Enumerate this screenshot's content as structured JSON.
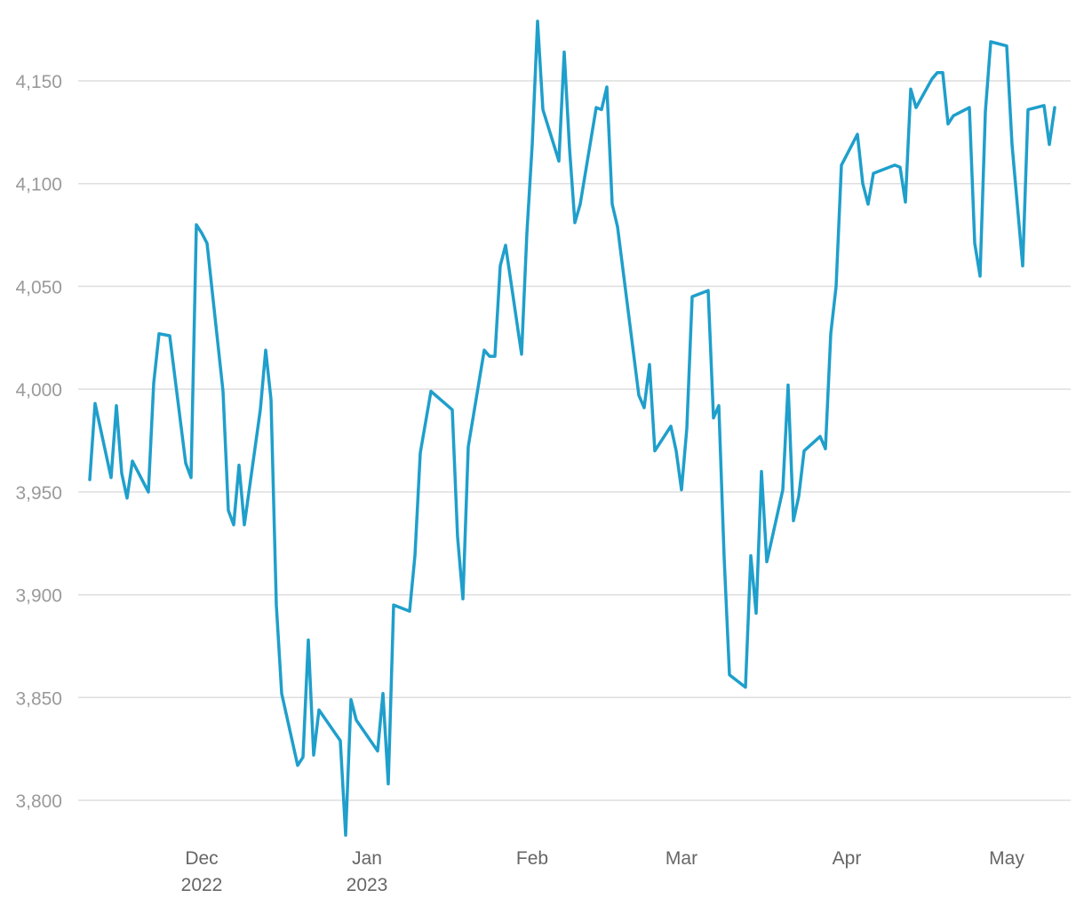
{
  "chart_data": {
    "type": "line",
    "title": "",
    "xlabel": "",
    "ylabel": "",
    "ylim": [
      3780,
      4180
    ],
    "xlim": [
      "2022-11-08",
      "2023-05-12"
    ],
    "grid": "horizontal",
    "legend": "none",
    "y_ticks": [
      {
        "value": 3800,
        "label": "3,800"
      },
      {
        "value": 3850,
        "label": "3,850"
      },
      {
        "value": 3900,
        "label": "3,900"
      },
      {
        "value": 3950,
        "label": "3,950"
      },
      {
        "value": 4000,
        "label": "4,000"
      },
      {
        "value": 4050,
        "label": "4,050"
      },
      {
        "value": 4100,
        "label": "4,100"
      },
      {
        "value": 4150,
        "label": "4,150"
      }
    ],
    "x_ticks": [
      {
        "date": "2022-12-01",
        "label": "Dec",
        "sublabel": "2022"
      },
      {
        "date": "2023-01-01",
        "label": "Jan",
        "sublabel": "2023"
      },
      {
        "date": "2023-02-01",
        "label": "Feb",
        "sublabel": ""
      },
      {
        "date": "2023-03-01",
        "label": "Mar",
        "sublabel": ""
      },
      {
        "date": "2023-04-01",
        "label": "Apr",
        "sublabel": ""
      },
      {
        "date": "2023-05-01",
        "label": "May",
        "sublabel": ""
      }
    ],
    "series": [
      {
        "color": "#1f9fcb",
        "points": [
          [
            "2022-11-10",
            3956
          ],
          [
            "2022-11-11",
            3993
          ],
          [
            "2022-11-14",
            3957
          ],
          [
            "2022-11-15",
            3992
          ],
          [
            "2022-11-16",
            3959
          ],
          [
            "2022-11-17",
            3947
          ],
          [
            "2022-11-18",
            3965
          ],
          [
            "2022-11-21",
            3950
          ],
          [
            "2022-11-22",
            4003
          ],
          [
            "2022-11-23",
            4027
          ],
          [
            "2022-11-25",
            4026
          ],
          [
            "2022-11-28",
            3964
          ],
          [
            "2022-11-29",
            3957
          ],
          [
            "2022-11-30",
            4080
          ],
          [
            "2022-12-01",
            4076
          ],
          [
            "2022-12-02",
            4071
          ],
          [
            "2022-12-05",
            3999
          ],
          [
            "2022-12-06",
            3941
          ],
          [
            "2022-12-07",
            3934
          ],
          [
            "2022-12-08",
            3963
          ],
          [
            "2022-12-09",
            3934
          ],
          [
            "2022-12-12",
            3990
          ],
          [
            "2022-12-13",
            4019
          ],
          [
            "2022-12-14",
            3995
          ],
          [
            "2022-12-15",
            3895
          ],
          [
            "2022-12-16",
            3852
          ],
          [
            "2022-12-19",
            3817
          ],
          [
            "2022-12-20",
            3821
          ],
          [
            "2022-12-21",
            3878
          ],
          [
            "2022-12-22",
            3822
          ],
          [
            "2022-12-23",
            3844
          ],
          [
            "2022-12-27",
            3829
          ],
          [
            "2022-12-28",
            3783
          ],
          [
            "2022-12-29",
            3849
          ],
          [
            "2022-12-30",
            3839
          ],
          [
            "2023-01-03",
            3824
          ],
          [
            "2023-01-04",
            3852
          ],
          [
            "2023-01-05",
            3808
          ],
          [
            "2023-01-06",
            3895
          ],
          [
            "2023-01-09",
            3892
          ],
          [
            "2023-01-10",
            3919
          ],
          [
            "2023-01-11",
            3969
          ],
          [
            "2023-01-13",
            3999
          ],
          [
            "2023-01-17",
            3990
          ],
          [
            "2023-01-18",
            3928
          ],
          [
            "2023-01-19",
            3898
          ],
          [
            "2023-01-20",
            3972
          ],
          [
            "2023-01-23",
            4019
          ],
          [
            "2023-01-24",
            4016
          ],
          [
            "2023-01-25",
            4016
          ],
          [
            "2023-01-26",
            4060
          ],
          [
            "2023-01-27",
            4070
          ],
          [
            "2023-01-30",
            4017
          ],
          [
            "2023-01-31",
            4076
          ],
          [
            "2023-02-01",
            4119
          ],
          [
            "2023-02-02",
            4179
          ],
          [
            "2023-02-03",
            4136
          ],
          [
            "2023-02-06",
            4111
          ],
          [
            "2023-02-07",
            4164
          ],
          [
            "2023-02-08",
            4117
          ],
          [
            "2023-02-09",
            4081
          ],
          [
            "2023-02-10",
            4090
          ],
          [
            "2023-02-13",
            4137
          ],
          [
            "2023-02-14",
            4136
          ],
          [
            "2023-02-15",
            4147
          ],
          [
            "2023-02-16",
            4090
          ],
          [
            "2023-02-17",
            4079
          ],
          [
            "2023-02-21",
            3997
          ],
          [
            "2023-02-22",
            3991
          ],
          [
            "2023-02-23",
            4012
          ],
          [
            "2023-02-24",
            3970
          ],
          [
            "2023-02-27",
            3982
          ],
          [
            "2023-02-28",
            3970
          ],
          [
            "2023-03-01",
            3951
          ],
          [
            "2023-03-02",
            3981
          ],
          [
            "2023-03-03",
            4045
          ],
          [
            "2023-03-06",
            4048
          ],
          [
            "2023-03-07",
            3986
          ],
          [
            "2023-03-08",
            3992
          ],
          [
            "2023-03-09",
            3918
          ],
          [
            "2023-03-10",
            3861
          ],
          [
            "2023-03-13",
            3855
          ],
          [
            "2023-03-14",
            3919
          ],
          [
            "2023-03-15",
            3891
          ],
          [
            "2023-03-16",
            3960
          ],
          [
            "2023-03-17",
            3916
          ],
          [
            "2023-03-20",
            3951
          ],
          [
            "2023-03-21",
            4002
          ],
          [
            "2023-03-22",
            3936
          ],
          [
            "2023-03-23",
            3948
          ],
          [
            "2023-03-24",
            3970
          ],
          [
            "2023-03-27",
            3977
          ],
          [
            "2023-03-28",
            3971
          ],
          [
            "2023-03-29",
            4027
          ],
          [
            "2023-03-30",
            4050
          ],
          [
            "2023-03-31",
            4109
          ],
          [
            "2023-04-03",
            4124
          ],
          [
            "2023-04-04",
            4100
          ],
          [
            "2023-04-05",
            4090
          ],
          [
            "2023-04-06",
            4105
          ],
          [
            "2023-04-10",
            4109
          ],
          [
            "2023-04-11",
            4108
          ],
          [
            "2023-04-12",
            4091
          ],
          [
            "2023-04-13",
            4146
          ],
          [
            "2023-04-14",
            4137
          ],
          [
            "2023-04-17",
            4151
          ],
          [
            "2023-04-18",
            4154
          ],
          [
            "2023-04-19",
            4154
          ],
          [
            "2023-04-20",
            4129
          ],
          [
            "2023-04-21",
            4133
          ],
          [
            "2023-04-24",
            4137
          ],
          [
            "2023-04-25",
            4071
          ],
          [
            "2023-04-26",
            4055
          ],
          [
            "2023-04-27",
            4135
          ],
          [
            "2023-04-28",
            4169
          ],
          [
            "2023-05-01",
            4167
          ],
          [
            "2023-05-02",
            4119
          ],
          [
            "2023-05-04",
            4060
          ],
          [
            "2023-05-05",
            4136
          ],
          [
            "2023-05-08",
            4138
          ],
          [
            "2023-05-09",
            4119
          ],
          [
            "2023-05-10",
            4137
          ]
        ]
      }
    ]
  }
}
